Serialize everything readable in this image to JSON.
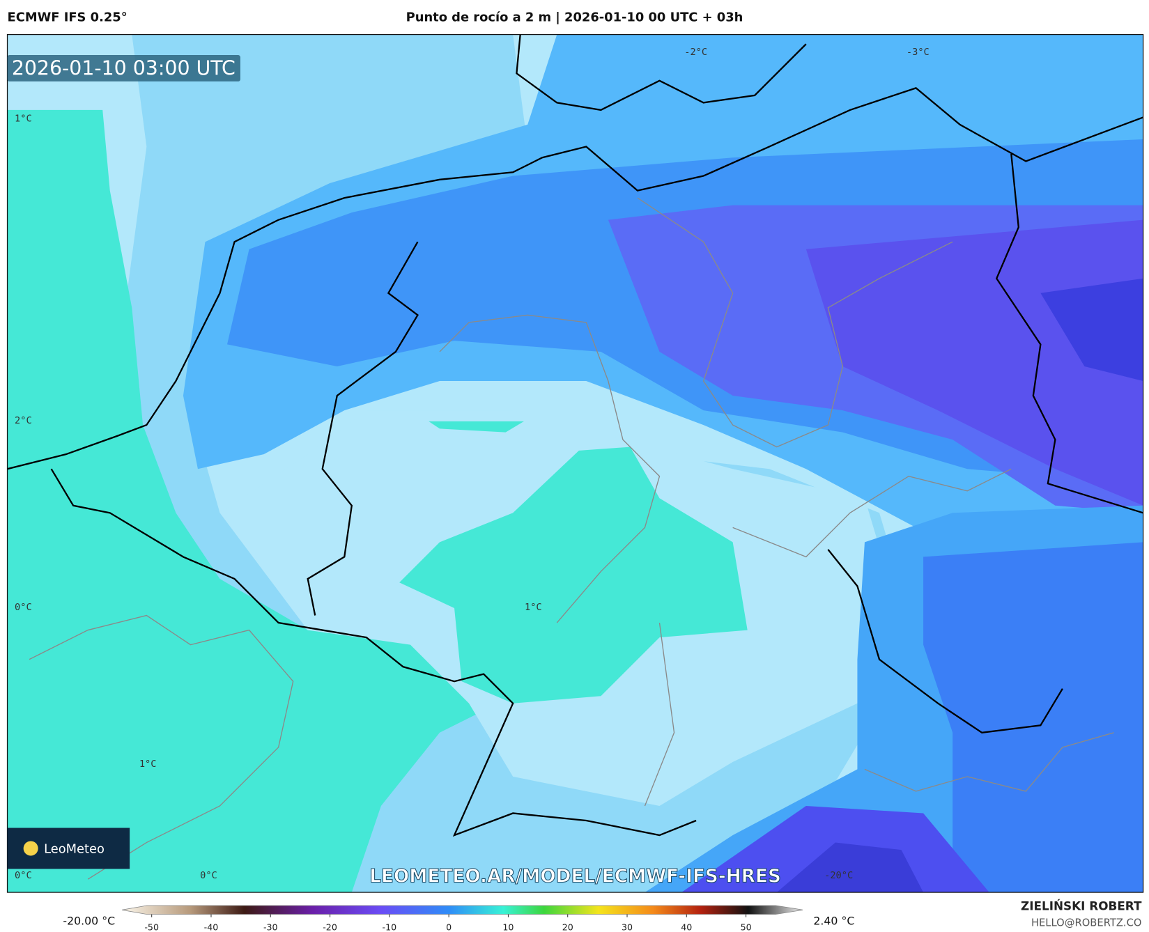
{
  "header": {
    "model": "ECMWF IFS 0.25°",
    "title": "Punto de rocío a 2 m | 2026-01-10 00 UTC + 03h"
  },
  "map": {
    "valid_time": "2026-01-10 03:00 UTC",
    "contour_labels": [
      "1°C",
      "2°C",
      "0°C",
      "1°C",
      "0°C",
      "0°C",
      "-2°C",
      "-3°C",
      "1°C",
      "-20°C"
    ],
    "watermark": "LEOMETEO.AR/MODEL/ECMWF-IFS-HRES",
    "logo": "LeoMeteo"
  },
  "colorbar": {
    "min_label": "-20.00 °C",
    "max_label": "2.40 °C",
    "ticks": [
      -50,
      -40,
      -30,
      -20,
      -10,
      0,
      10,
      20,
      30,
      40,
      50
    ],
    "lim": [
      -55,
      55
    ]
  },
  "footer": {
    "author": "ZIELIŃSKI ROBERT",
    "contact": "HELLO@ROBERTZ.CO"
  }
}
